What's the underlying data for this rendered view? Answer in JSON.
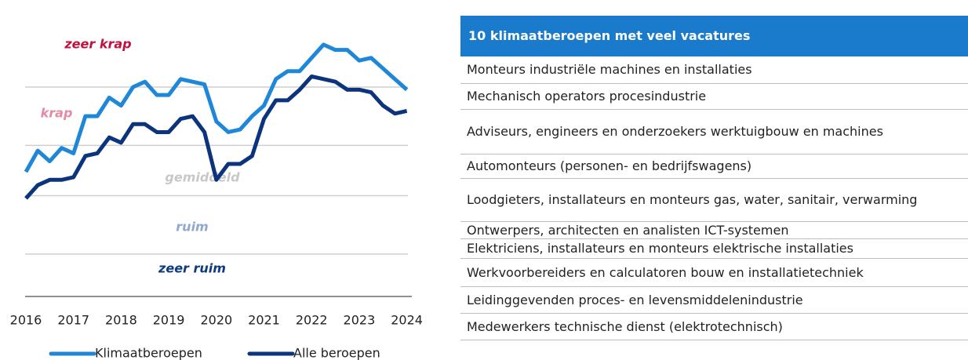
{
  "chart_data": {
    "type": "line",
    "x": [
      2016,
      2016.25,
      2016.5,
      2016.75,
      2017,
      2017.25,
      2017.5,
      2017.75,
      2018,
      2018.25,
      2018.5,
      2018.75,
      2019,
      2019.25,
      2019.5,
      2019.75,
      2020,
      2020.25,
      2020.5,
      2020.75,
      2021,
      2021.25,
      2021.5,
      2021.75,
      2022,
      2022.25,
      2022.5,
      2022.75,
      2023,
      2023.25,
      2023.5,
      2023.75,
      2024
    ],
    "xlim": [
      2015.55,
      2024.55
    ],
    "xticks": [
      2016,
      2017,
      2018,
      2019,
      2020,
      2021,
      2022,
      2023,
      2024
    ],
    "ylim": [
      0,
      100
    ],
    "gridlines": [
      79,
      57,
      38,
      16
    ],
    "zones": [
      {
        "label": "zeer krap",
        "color": "#c01040"
      },
      {
        "label": "krap",
        "color": "#e48aa2"
      },
      {
        "label": "gemiddeld",
        "color": "#c8c8c8"
      },
      {
        "label": "ruim",
        "color": "#8fa8d0"
      },
      {
        "label": "zeer ruim",
        "color": "#0d3a80"
      }
    ],
    "series": [
      {
        "name": "Klimaatberoepen",
        "color": "#1f87d8",
        "values": [
          47,
          55,
          51,
          56,
          54,
          68,
          68,
          75,
          72,
          79,
          81,
          76,
          76,
          82,
          81,
          80,
          66,
          62,
          63,
          68,
          72,
          82,
          85,
          85,
          90,
          95,
          93,
          93,
          89,
          90,
          86,
          82,
          78
        ]
      },
      {
        "name": "Alle beroepen",
        "color": "#0b347c",
        "values": [
          37,
          42,
          44,
          44,
          45,
          53,
          54,
          60,
          58,
          65,
          65,
          62,
          62,
          67,
          68,
          62,
          44,
          50,
          50,
          53,
          67,
          74,
          74,
          78,
          83,
          82,
          81,
          78,
          78,
          77,
          72,
          69,
          70
        ]
      }
    ]
  },
  "table": {
    "title": "10 klimaatberoepen met veel vacatures",
    "rows": [
      "Monteurs industriële machines en installaties",
      "Mechanisch operators procesindustrie",
      "Adviseurs, engineers en onderzoekers werktuigbouw en machines",
      "Automonteurs (personen- en bedrijfswagens)",
      "Loodgieters, installateurs en monteurs gas, water, sanitair, verwarming",
      "Ontwerpers, architecten en analisten ICT-systemen",
      "Elektriciens, installateurs en monteurs elektrische installaties",
      "Werkvoorbereiders en calculatoren bouw en installatietechniek",
      "Leidinggevenden proces- en levensmiddelenindustrie",
      "Medewerkers technische dienst (elektrotechnisch)"
    ]
  }
}
